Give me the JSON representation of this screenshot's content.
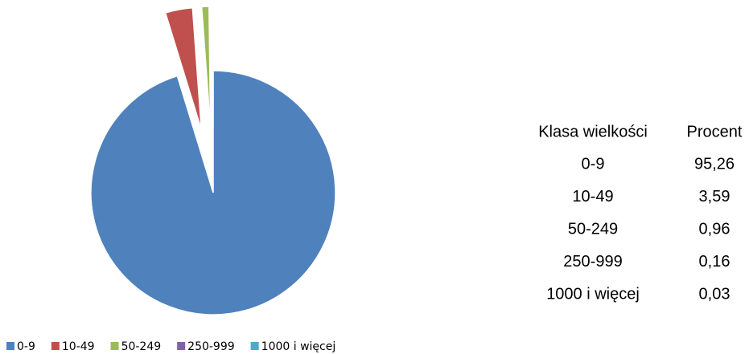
{
  "chart_data": {
    "type": "pie",
    "categories": [
      "0-9",
      "10-49",
      "50-249",
      "250-999",
      "1000 i więcej"
    ],
    "values": [
      95.26,
      3.59,
      0.96,
      0.16,
      0.03
    ],
    "value_labels": [
      "95,26",
      "3,59",
      "0,96",
      "0,16",
      "0,03"
    ],
    "colors": [
      "#4f81bd",
      "#c0504d",
      "#9bbb59",
      "#8064a2",
      "#4bacc6"
    ],
    "table_headers": [
      "Klasa wielkości",
      "Procent"
    ],
    "legend": "bottom"
  }
}
